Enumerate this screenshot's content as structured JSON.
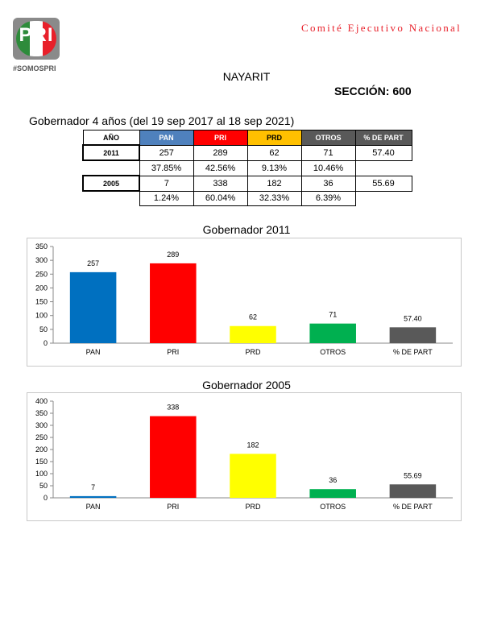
{
  "brand": {
    "logo_letters": "PRI",
    "logo_colors": [
      "#2e8b3b",
      "#ffffff",
      "#e8202a"
    ],
    "tagline": "#SOMOSPRI",
    "org_name": "Comité Ejecutivo Nacional"
  },
  "state": "NAYARIT",
  "seccion": "SECCIÓN: 600",
  "period": "Gobernador 4 años (del 19 sep 2017 al 18 sep 2021)",
  "table": {
    "headers": [
      {
        "label": "AÑO",
        "color": "#ffffff",
        "text_color": "#000000"
      },
      {
        "label": "PAN",
        "color": "#4f81bd",
        "text_color": "#ffffff"
      },
      {
        "label": "PRI",
        "color": "#ff0000",
        "text_color": "#ffffff"
      },
      {
        "label": "PRD",
        "color": "#ffc000",
        "text_color": "#000000"
      },
      {
        "label": "OTROS",
        "color": "#595959",
        "text_color": "#ffffff"
      },
      {
        "label": "% DE PART",
        "color": "#595959",
        "text_color": "#ffffff"
      }
    ],
    "rows": [
      {
        "year": "2011",
        "values": [
          "257",
          "289",
          "62",
          "71",
          "57.40"
        ],
        "pcts": [
          "37.85%",
          "42.56%",
          "9.13%",
          "10.46%"
        ]
      },
      {
        "year": "2005",
        "values": [
          "7",
          "338",
          "182",
          "36",
          "55.69"
        ],
        "pcts": [
          "1.24%",
          "60.04%",
          "32.33%",
          "6.39%"
        ]
      }
    ]
  },
  "chart_data": [
    {
      "type": "bar",
      "title": "Gobernador  2011",
      "categories": [
        "PAN",
        "PRI",
        "PRD",
        "OTROS",
        "% DE PART"
      ],
      "values": [
        257,
        289,
        62,
        71,
        57.4
      ],
      "labels": [
        "257",
        "289",
        "62",
        "71",
        "57.40"
      ],
      "colors": [
        "#0070c0",
        "#ff0000",
        "#ffff00",
        "#00b050",
        "#595959"
      ],
      "yticks": [
        "0",
        "50",
        "100",
        "150",
        "200",
        "250",
        "300",
        "350"
      ],
      "ylim": [
        0,
        350
      ],
      "grid": false
    },
    {
      "type": "bar",
      "title": "Gobernador  2005",
      "categories": [
        "PAN",
        "PRI",
        "PRD",
        "OTROS",
        "% DE PART"
      ],
      "values": [
        7,
        338,
        182,
        36,
        55.69
      ],
      "labels": [
        "7",
        "338",
        "182",
        "36",
        "55.69"
      ],
      "colors": [
        "#0070c0",
        "#ff0000",
        "#ffff00",
        "#00b050",
        "#595959"
      ],
      "yticks": [
        "0",
        "50",
        "100",
        "150",
        "200",
        "250",
        "300",
        "350",
        "400"
      ],
      "ylim": [
        0,
        400
      ],
      "grid": false
    }
  ]
}
